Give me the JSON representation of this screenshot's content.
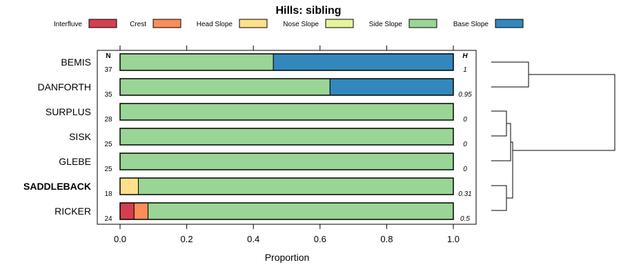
{
  "chart_data": {
    "type": "stacked-bar",
    "title": "Hills: sibling",
    "xlabel": "Proportion",
    "xlim": [
      0,
      1
    ],
    "xticks": [
      "0.0",
      "0.2",
      "0.4",
      "0.6",
      "0.8",
      "1.0"
    ],
    "n_header": "N",
    "h_header": "H",
    "legend": [
      {
        "name": "Interfluve",
        "color": "#D53E4F"
      },
      {
        "name": "Crest",
        "color": "#FC8D59"
      },
      {
        "name": "Head Slope",
        "color": "#FEE08B"
      },
      {
        "name": "Nose Slope",
        "color": "#E6F598"
      },
      {
        "name": "Side Slope",
        "color": "#99D594"
      },
      {
        "name": "Base Slope",
        "color": "#3288BD"
      }
    ],
    "rows": [
      {
        "label": "BEMIS",
        "n": "37",
        "h": "1",
        "bold": false,
        "values": [
          0,
          0,
          0,
          0,
          0.46,
          0.54
        ]
      },
      {
        "label": "DANFORTH",
        "n": "35",
        "h": "0.95",
        "bold": false,
        "values": [
          0,
          0,
          0,
          0,
          0.63,
          0.37
        ]
      },
      {
        "label": "SURPLUS",
        "n": "28",
        "h": "0",
        "bold": false,
        "values": [
          0,
          0,
          0,
          0,
          1.0,
          0
        ]
      },
      {
        "label": "SISK",
        "n": "25",
        "h": "0",
        "bold": false,
        "values": [
          0,
          0,
          0,
          0,
          1.0,
          0
        ]
      },
      {
        "label": "GLEBE",
        "n": "25",
        "h": "0",
        "bold": false,
        "values": [
          0,
          0,
          0,
          0,
          1.0,
          0
        ]
      },
      {
        "label": "SADDLEBACK",
        "n": "18",
        "h": "0.31",
        "bold": true,
        "values": [
          0,
          0,
          0.055,
          0,
          0.945,
          0
        ]
      },
      {
        "label": "RICKER",
        "n": "24",
        "h": "0.5",
        "bold": false,
        "values": [
          0.042,
          0.042,
          0,
          0,
          0.916,
          0
        ]
      }
    ]
  }
}
